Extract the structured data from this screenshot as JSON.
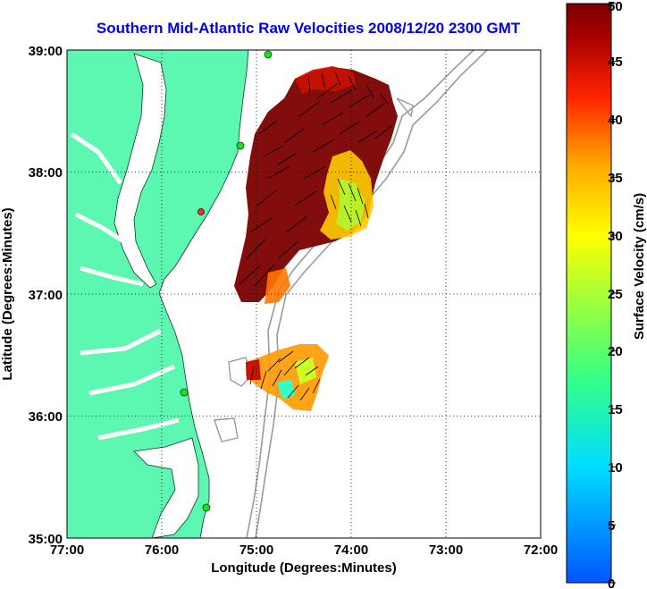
{
  "title": "Southern Mid-Atlantic Raw Velocities 2008/12/20 2300 GMT",
  "axes": {
    "xlabel": "Longitude (Degrees:Minutes)",
    "ylabel": "Latitude (Degrees:Minutes)",
    "x_ticks": [
      "77:00",
      "76:00",
      "75:00",
      "74:00",
      "73:00",
      "72:00"
    ],
    "y_ticks": [
      "39:00",
      "38:00",
      "37:00",
      "36:00",
      "35:00"
    ]
  },
  "colorbar": {
    "label": "Surface Velocity (cm/s)",
    "ticks": [
      "0",
      "5",
      "10",
      "15",
      "20",
      "25",
      "30",
      "35",
      "40",
      "45",
      "50"
    ],
    "min": 0,
    "max": 50
  },
  "colors": {
    "land": "#5cf7b0",
    "grid": "#000000",
    "title": "#0000ee",
    "bathymetry": "#9a9a9a",
    "station": "#22dd22",
    "station_alt": "#ee3322"
  }
}
